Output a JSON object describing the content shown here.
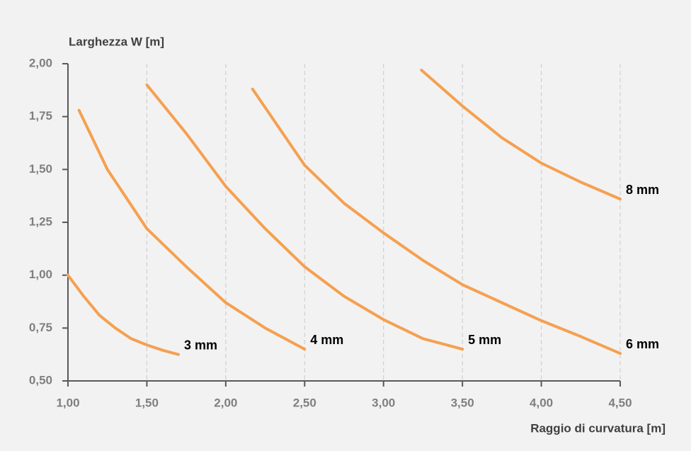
{
  "chart_data": {
    "type": "line",
    "y_label": "Larghezza W [m]",
    "x_label": "Raggio di curvatura [m]",
    "xlim": [
      1,
      4.5
    ],
    "ylim": [
      0.5,
      2
    ],
    "xticks": [
      {
        "value": 1,
        "label": "1,00"
      },
      {
        "value": 1.5,
        "label": "1,50"
      },
      {
        "value": 2,
        "label": "2,00"
      },
      {
        "value": 2.5,
        "label": "2,50"
      },
      {
        "value": 3,
        "label": "3,00"
      },
      {
        "value": 3.5,
        "label": "3,50"
      },
      {
        "value": 4,
        "label": "4,00"
      },
      {
        "value": 4.5,
        "label": "4,50"
      }
    ],
    "yticks": [
      {
        "value": 0.5,
        "label": "0,50"
      },
      {
        "value": 0.75,
        "label": "0,75"
      },
      {
        "value": 1,
        "label": "1,00"
      },
      {
        "value": 1.25,
        "label": "1,25"
      },
      {
        "value": 1.5,
        "label": "1,50"
      },
      {
        "value": 1.75,
        "label": "1,75"
      },
      {
        "value": 2,
        "label": "2,00"
      }
    ],
    "grid": true,
    "series": [
      {
        "name": "3 mm",
        "color": "#f5a050",
        "x": [
          1.0,
          1.1,
          1.2,
          1.3,
          1.4,
          1.5,
          1.6,
          1.7
        ],
        "values": [
          1.0,
          0.9,
          0.81,
          0.75,
          0.7,
          0.67,
          0.645,
          0.625
        ]
      },
      {
        "name": "4 mm",
        "color": "#f5a050",
        "x": [
          1.07,
          1.25,
          1.5,
          1.75,
          2.0,
          2.25,
          2.5
        ],
        "values": [
          1.78,
          1.5,
          1.22,
          1.04,
          0.87,
          0.75,
          0.65
        ]
      },
      {
        "name": "5 mm",
        "color": "#f5a050",
        "x": [
          1.5,
          1.75,
          2.0,
          2.25,
          2.5,
          2.75,
          3.0,
          3.25,
          3.5
        ],
        "values": [
          1.9,
          1.67,
          1.42,
          1.22,
          1.04,
          0.9,
          0.79,
          0.7,
          0.65
        ]
      },
      {
        "name": "6 mm",
        "color": "#f5a050",
        "x": [
          2.17,
          2.5,
          2.75,
          3.0,
          3.25,
          3.5,
          3.75,
          4.0,
          4.25,
          4.5
        ],
        "values": [
          1.88,
          1.52,
          1.34,
          1.2,
          1.07,
          0.955,
          0.87,
          0.785,
          0.71,
          0.63
        ]
      },
      {
        "name": "8 mm",
        "color": "#f5a050",
        "x": [
          3.24,
          3.5,
          3.75,
          4.0,
          4.25,
          4.5
        ],
        "values": [
          1.97,
          1.8,
          1.65,
          1.53,
          1.44,
          1.36
        ]
      }
    ]
  }
}
